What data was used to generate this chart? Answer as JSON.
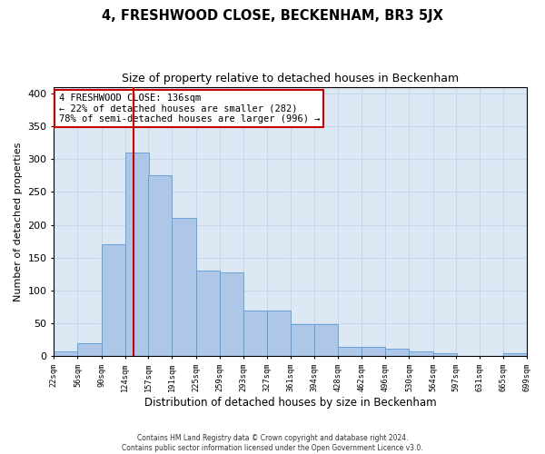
{
  "title": "4, FRESHWOOD CLOSE, BECKENHAM, BR3 5JX",
  "subtitle": "Size of property relative to detached houses in Beckenham",
  "xlabel": "Distribution of detached houses by size in Beckenham",
  "ylabel": "Number of detached properties",
  "bin_edges": [
    22,
    56,
    90,
    124,
    157,
    191,
    225,
    259,
    293,
    327,
    361,
    394,
    428,
    462,
    496,
    530,
    564,
    597,
    631,
    665,
    699
  ],
  "bin_counts": [
    7,
    20,
    170,
    310,
    275,
    210,
    130,
    128,
    70,
    70,
    49,
    49,
    14,
    14,
    11,
    7,
    4,
    1,
    0,
    4,
    0
  ],
  "bar_color": "#aec6e8",
  "bar_edge_color": "#5b9bd5",
  "vline_color": "#cc0000",
  "vline_x": 136,
  "annotation_text": "4 FRESHWOOD CLOSE: 136sqm\n← 22% of detached houses are smaller (282)\n78% of semi-detached houses are larger (996) →",
  "annotation_box_color": "#ffffff",
  "annotation_box_edge_color": "#cc0000",
  "ylim": [
    0,
    410
  ],
  "xlim": [
    22,
    699
  ],
  "ytick_values": [
    0,
    50,
    100,
    150,
    200,
    250,
    300,
    350,
    400
  ],
  "xtick_labels": [
    "22sqm",
    "56sqm",
    "90sqm",
    "124sqm",
    "157sqm",
    "191sqm",
    "225sqm",
    "259sqm",
    "293sqm",
    "327sqm",
    "361sqm",
    "394sqm",
    "428sqm",
    "462sqm",
    "496sqm",
    "530sqm",
    "564sqm",
    "597sqm",
    "631sqm",
    "665sqm",
    "699sqm"
  ],
  "grid_color": "#c8d8e8",
  "background_color": "#dde8f5",
  "footer_line1": "Contains HM Land Registry data © Crown copyright and database right 2024.",
  "footer_line2": "Contains public sector information licensed under the Open Government Licence v3.0."
}
